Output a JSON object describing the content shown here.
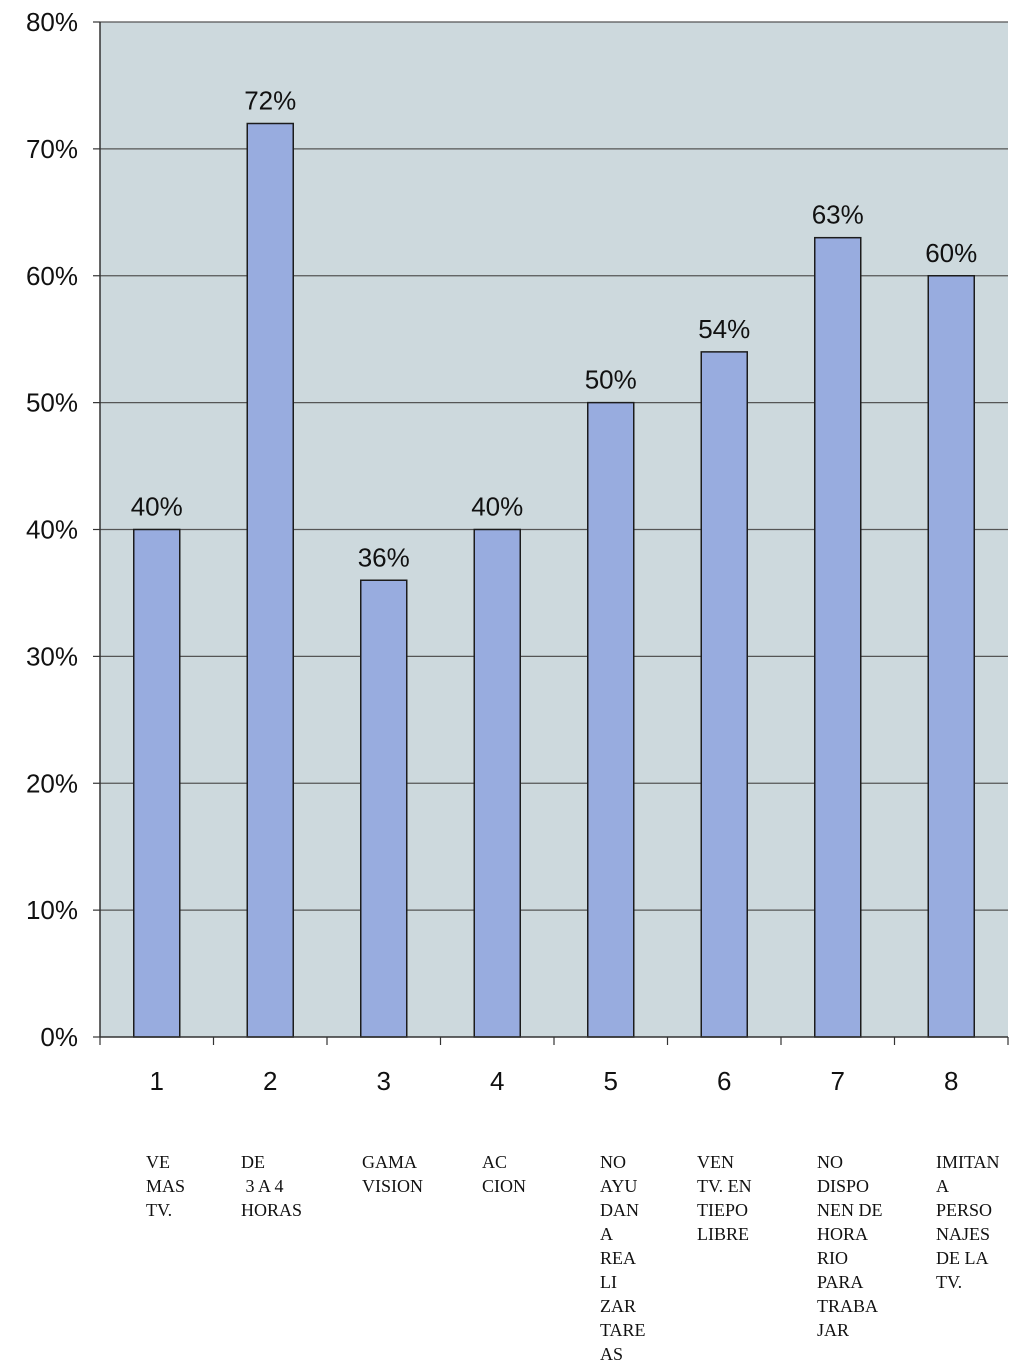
{
  "chart_data": {
    "type": "bar",
    "categories": [
      "1",
      "2",
      "3",
      "4",
      "5",
      "6",
      "7",
      "8"
    ],
    "values": [
      40,
      72,
      36,
      40,
      50,
      54,
      63,
      60
    ],
    "data_labels": [
      "40%",
      "72%",
      "36%",
      "40%",
      "50%",
      "54%",
      "63%",
      "60%"
    ],
    "y_ticks": [
      "0%",
      "10%",
      "20%",
      "30%",
      "40%",
      "50%",
      "60%",
      "70%",
      "80%"
    ],
    "ylim": [
      0,
      80
    ],
    "grid": true,
    "colors": {
      "bar": "#98acdf",
      "bar_edge": "#1c1c1c",
      "plot_bg": "#cdd9dd",
      "grid": "#555555"
    },
    "category_descriptions": [
      [
        "VE",
        "MAS",
        "TV."
      ],
      [
        "DE",
        " 3 A 4",
        "HORAS"
      ],
      [
        "GAMA",
        "VISION"
      ],
      [
        "AC",
        "CION"
      ],
      [
        "NO",
        "AYU",
        "DAN",
        "A",
        "REA",
        "LI",
        "ZAR",
        "TARE",
        "AS"
      ],
      [
        "VEN",
        "TV. EN",
        "TIEPO",
        "LIBRE"
      ],
      [
        "NO",
        "DISPO",
        "NEN DE",
        "HORA",
        "RIO",
        "PARA",
        "TRABA",
        "JAR"
      ],
      [
        "IMITAN",
        "A",
        "PERSO",
        "NAJES",
        "DE LA",
        "TV."
      ]
    ]
  }
}
